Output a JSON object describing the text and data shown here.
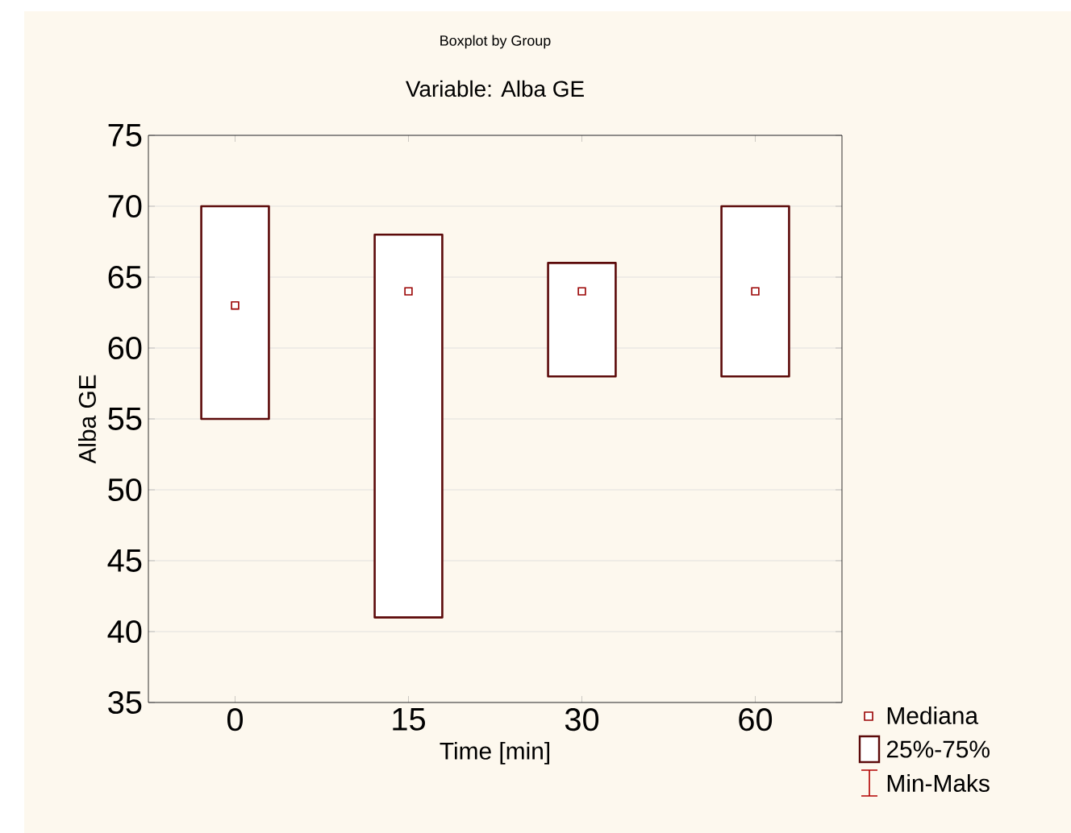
{
  "chart_data": {
    "type": "box",
    "title": "Boxplot by Group",
    "subtitle": "Variable: Alba GE",
    "xlabel": "Time [min]",
    "ylabel": "Alba GE",
    "categories": [
      "0",
      "15",
      "30",
      "60"
    ],
    "boxes": [
      {
        "low": 55,
        "q1": 55,
        "median": 63,
        "q3": 70,
        "high": 70
      },
      {
        "low": 41,
        "q1": 41,
        "median": 64,
        "q3": 68,
        "high": 68
      },
      {
        "low": 58,
        "q1": 58,
        "median": 64,
        "q3": 66,
        "high": 66
      },
      {
        "low": 58,
        "q1": 58,
        "median": 64,
        "q3": 70,
        "high": 70
      }
    ],
    "color": "#5c0a0a",
    "marker": "square",
    "ylim": [
      35,
      75
    ],
    "yticks": [
      35,
      40,
      45,
      50,
      55,
      60,
      65,
      70,
      75
    ],
    "grid": "y",
    "annotations": [
      "Mediana",
      "25%-75%",
      "Min-Maks"
    ]
  }
}
